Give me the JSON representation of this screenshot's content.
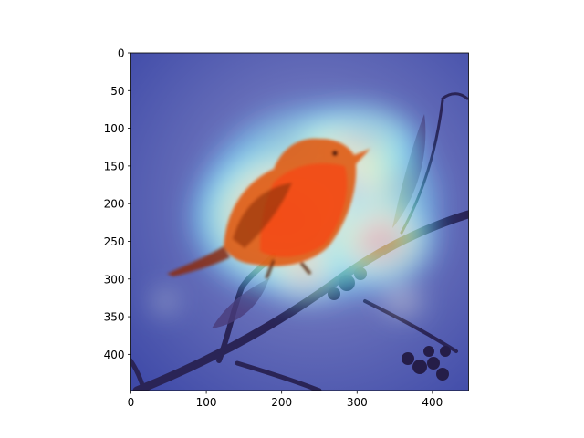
{
  "chart_data": {
    "type": "heatmap",
    "subject": "bird perched on a branch with a Grad-CAM style saliency overlay",
    "colormap": "jet",
    "overlay_alpha": 0.55,
    "xlim": [
      0,
      448
    ],
    "ylim": [
      448,
      0
    ],
    "x_ticks": [
      0,
      100,
      200,
      300,
      400
    ],
    "y_ticks": [
      0,
      50,
      100,
      150,
      200,
      250,
      300,
      350,
      400
    ],
    "xlabel": "",
    "ylabel": "",
    "title": "",
    "grid": false,
    "heat_regions": [
      {
        "cx": 275,
        "cy": 180,
        "rx": 75,
        "ry": 60,
        "level": 1.0
      },
      {
        "cx": 300,
        "cy": 120,
        "rx": 90,
        "ry": 55,
        "level": 0.7
      },
      {
        "cx": 250,
        "cy": 200,
        "rx": 170,
        "ry": 140,
        "level": 0.45
      },
      {
        "cx": 200,
        "cy": 220,
        "rx": 130,
        "ry": 105,
        "level": 0.5
      },
      {
        "cx": 330,
        "cy": 250,
        "rx": 80,
        "ry": 65,
        "level": 0.45
      },
      {
        "cx": 230,
        "cy": 290,
        "rx": 55,
        "ry": 45,
        "level": 0.35
      },
      {
        "cx": 45,
        "cy": 330,
        "rx": 18,
        "ry": 18,
        "level": 0.2
      },
      {
        "cx": 360,
        "cy": 330,
        "rx": 30,
        "ry": 22,
        "level": 0.2
      }
    ]
  }
}
